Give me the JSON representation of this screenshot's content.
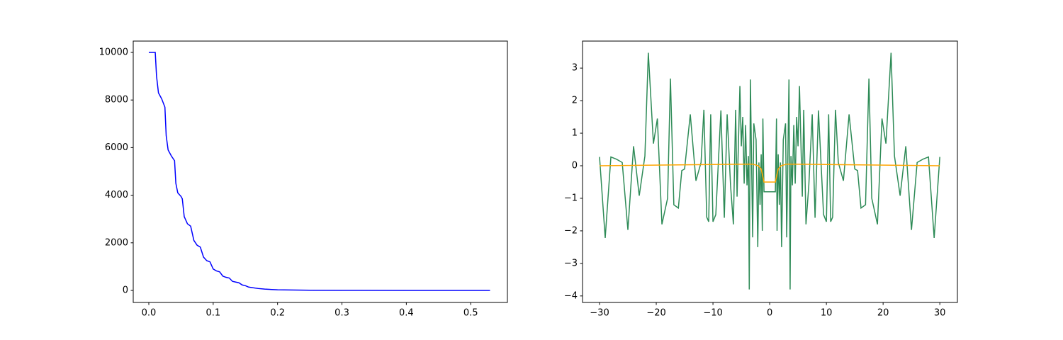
{
  "chart_data": [
    {
      "type": "line",
      "series": [
        {
          "color": "#0000ff",
          "x": [
            0,
            0.01,
            0.012,
            0.015,
            0.02,
            0.025,
            0.027,
            0.03,
            0.035,
            0.04,
            0.042,
            0.045,
            0.05,
            0.052,
            0.055,
            0.06,
            0.065,
            0.07,
            0.075,
            0.08,
            0.085,
            0.09,
            0.095,
            0.1,
            0.105,
            0.11,
            0.115,
            0.12,
            0.125,
            0.13,
            0.14,
            0.145,
            0.15,
            0.155,
            0.16,
            0.17,
            0.18,
            0.2,
            0.25,
            0.3,
            0.4,
            0.53
          ],
          "values": [
            10000,
            10000,
            9000,
            8300,
            8050,
            7700,
            6500,
            5900,
            5650,
            5450,
            4500,
            4100,
            3950,
            3850,
            3100,
            2800,
            2700,
            2100,
            1900,
            1820,
            1400,
            1250,
            1200,
            900,
            820,
            780,
            600,
            550,
            520,
            380,
            320,
            230,
            200,
            140,
            120,
            80,
            55,
            25,
            8,
            3,
            1,
            0
          ]
        }
      ],
      "xlim": [
        -0.0242,
        0.557
      ],
      "xticks": [
        {
          "value": 0,
          "label": "0.0"
        },
        0.1,
        0.2,
        0.3,
        0.4,
        0.5
      ],
      "ylim": [
        -506,
        10476
      ],
      "yticks": [
        0,
        2000,
        4000,
        6000,
        8000,
        10000
      ]
    },
    {
      "type": "line",
      "series": [
        {
          "color": "#2e8b57",
          "x": [
            -30,
            -29,
            -28,
            -27,
            -26,
            -25,
            -24,
            -23,
            -22,
            -21.4,
            -20.5,
            -19.8,
            -19,
            -18,
            -17.5,
            -16.9,
            -16.1,
            -15.5,
            -15,
            -14,
            -13,
            -12.1,
            -11.6,
            -11.1,
            -10.75,
            -10.4,
            -10,
            -9.5,
            -8.6,
            -8,
            -7.5,
            -6.9,
            -6.4,
            -6,
            -5.75,
            -5.25,
            -5,
            -4.75,
            -4.5,
            -4.25,
            -4,
            -3.75,
            -3.6,
            -3.4,
            -3,
            -2.8,
            -2.4,
            -2.1,
            -1.9,
            -1.7,
            -1.5,
            -1.3,
            -1.2,
            -1,
            1,
            1.2,
            1.3,
            1.5,
            1.7,
            1.9,
            2.1,
            2.4,
            2.8,
            3,
            3.4,
            3.6,
            3.75,
            4,
            4.25,
            4.5,
            4.75,
            5,
            5.25,
            5.75,
            6,
            6.4,
            6.9,
            7.5,
            8,
            8.6,
            9.5,
            10,
            10.4,
            10.75,
            11.1,
            11.6,
            12.1,
            13,
            14,
            15,
            15.5,
            16.1,
            16.9,
            17.5,
            18,
            19,
            19.8,
            20.5,
            21.4,
            22,
            23,
            24,
            25,
            26,
            27,
            28,
            29,
            30
          ],
          "values": [
            0.27,
            -2.22,
            0.27,
            0.2,
            0.1,
            -1.97,
            0.6,
            -0.92,
            0.3,
            3.47,
            0.68,
            1.45,
            -1.8,
            -1.0,
            2.68,
            -1.2,
            -1.3,
            -0.15,
            -0.1,
            1.58,
            -0.46,
            0.1,
            1.72,
            -1.58,
            -1.72,
            1.58,
            -1.72,
            -1.5,
            1.7,
            -1.6,
            1.58,
            -0.6,
            -1.8,
            1.72,
            -0.95,
            2.45,
            0.6,
            1.5,
            -0.55,
            1.25,
            -0.6,
            0.3,
            -3.8,
            2.65,
            -2.2,
            1.3,
            0.8,
            -2.5,
            0.1,
            -1.2,
            0.35,
            -2.0,
            1.45,
            -0.8,
            -0.8,
            1.45,
            -2.0,
            0.35,
            -1.2,
            0.1,
            -2.5,
            0.8,
            1.3,
            -2.2,
            2.65,
            -3.8,
            0.3,
            -0.6,
            1.25,
            -0.55,
            1.5,
            0.6,
            2.45,
            -0.95,
            1.72,
            -1.8,
            -0.6,
            1.58,
            -1.6,
            1.7,
            -1.5,
            -1.72,
            1.58,
            -1.72,
            -1.58,
            1.72,
            0.1,
            -0.46,
            1.58,
            -0.1,
            -0.15,
            -1.3,
            -1.2,
            2.68,
            -1.0,
            -1.8,
            1.45,
            0.68,
            3.47,
            0.3,
            -0.92,
            0.6,
            -1.97,
            0.1,
            0.2,
            0.27,
            -2.22,
            0.27
          ]
        },
        {
          "color": "#ffa500",
          "x": [
            -30,
            -3.5,
            -3,
            -2,
            -1.5,
            -1,
            1,
            1.5,
            2,
            3,
            3.5,
            30
          ],
          "values": [
            0,
            0.05,
            0.05,
            0,
            -0.1,
            -0.5,
            -0.5,
            -0.1,
            0,
            0.05,
            0.05,
            0
          ]
        }
      ],
      "xlim": [
        -33,
        33.1
      ],
      "xticks": [
        {
          "value": -30,
          "label": "−30"
        },
        {
          "value": -20,
          "label": "−20"
        },
        {
          "value": -10,
          "label": "−10"
        },
        0,
        10,
        20,
        30
      ],
      "ylim": [
        -4.2,
        3.83
      ],
      "yticks": [
        {
          "value": -4,
          "label": "−4"
        },
        {
          "value": -3,
          "label": "−3"
        },
        {
          "value": -2,
          "label": "−2"
        },
        {
          "value": -1,
          "label": "−1"
        },
        0,
        1,
        2,
        3
      ]
    }
  ]
}
